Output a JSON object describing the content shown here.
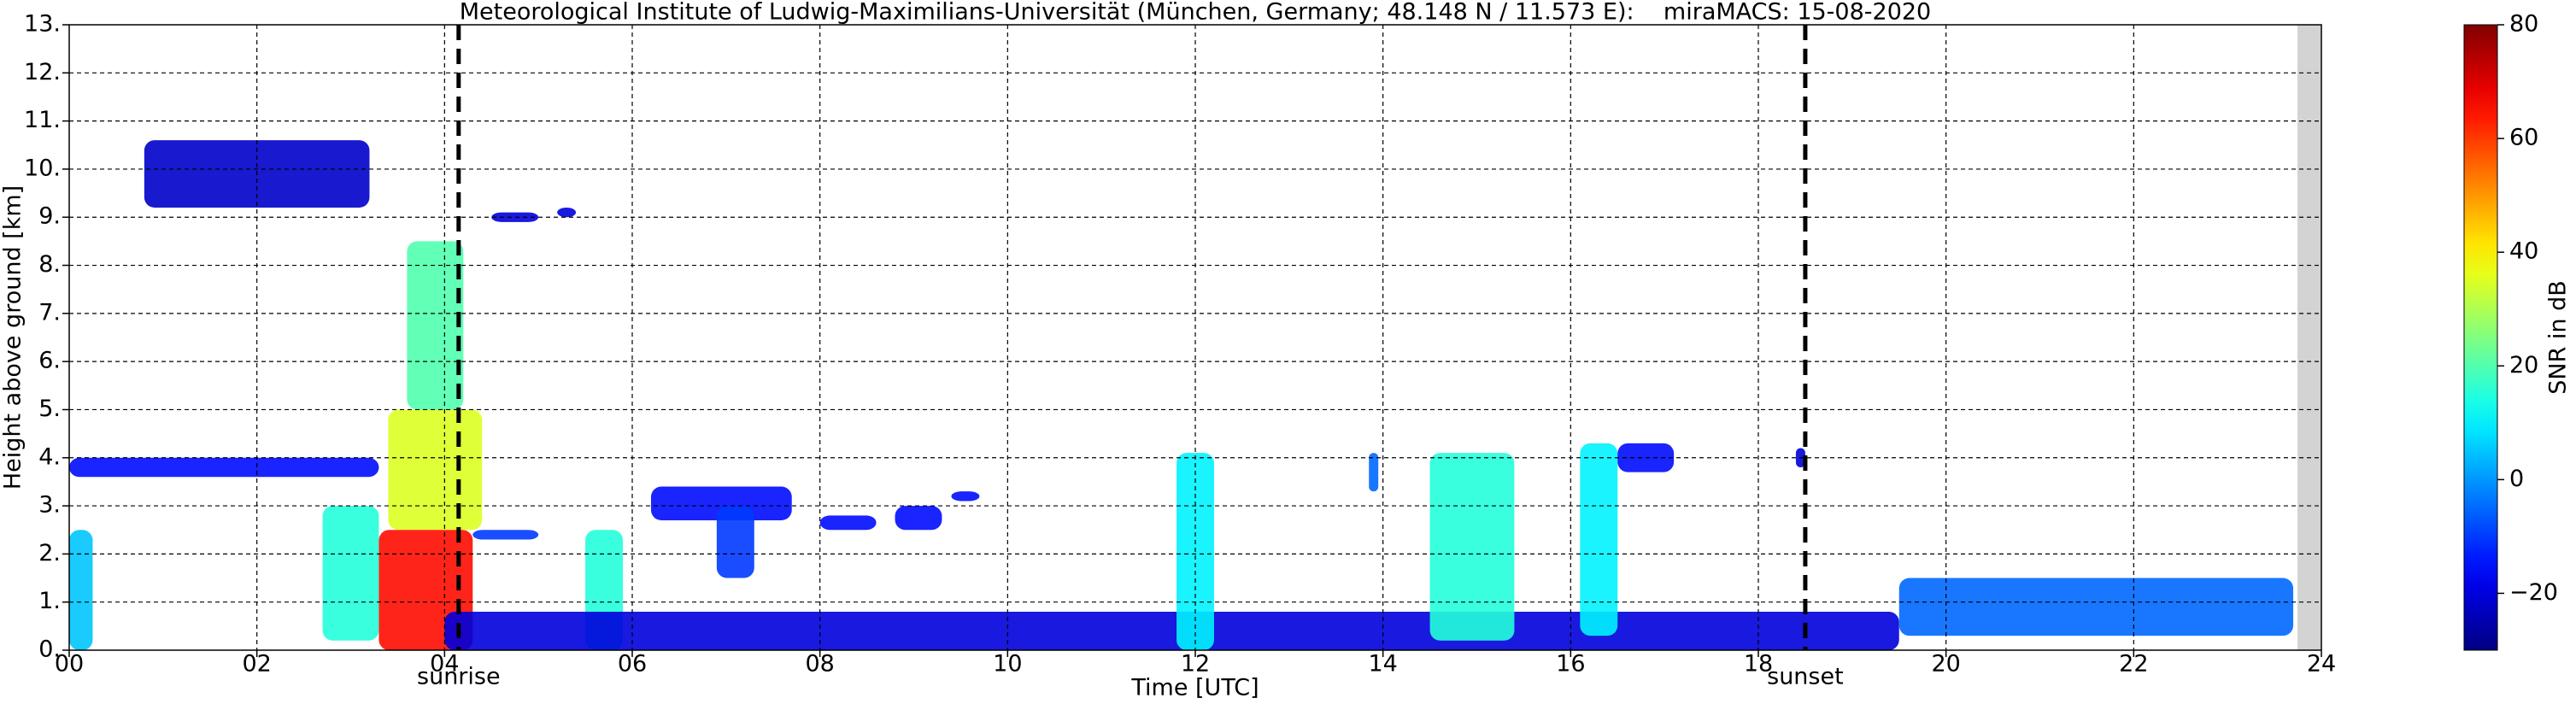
{
  "chart_data": {
    "type": "radar-heatmap",
    "title": "Meteorological Institute of Ludwig-Maximilians-Universität (München, Germany; 48.148 N / 11.573 E):    miraMACS: 15-08-2020",
    "x_label": "Time [UTC]",
    "y_label": "Height above ground [km]",
    "colorbar_label": "SNR in dB",
    "xlim": [
      0,
      24
    ],
    "xticks": [
      {
        "value": 0,
        "label": "00"
      },
      {
        "value": 2,
        "label": "02"
      },
      {
        "value": 4,
        "label": "04"
      },
      {
        "value": 6,
        "label": "06"
      },
      {
        "value": 8,
        "label": "08"
      },
      10,
      12,
      14,
      16,
      18,
      20,
      22,
      24
    ],
    "ylim": [
      0,
      13
    ],
    "yticks": [
      {
        "value": 0,
        "label": "0."
      },
      {
        "value": 1,
        "label": "1."
      },
      {
        "value": 2,
        "label": "2."
      },
      {
        "value": 3,
        "label": "3."
      },
      {
        "value": 4,
        "label": "4."
      },
      {
        "value": 5,
        "label": "5."
      },
      {
        "value": 6,
        "label": "6."
      },
      {
        "value": 7,
        "label": "7."
      },
      {
        "value": 8,
        "label": "8."
      },
      {
        "value": 9,
        "label": "9."
      },
      {
        "value": 10,
        "label": "10."
      },
      {
        "value": 11,
        "label": "11."
      },
      {
        "value": 12,
        "label": "12."
      },
      {
        "value": 13,
        "label": "13."
      }
    ],
    "clim": [
      -30,
      80
    ],
    "cticks": [
      {
        "value": -20,
        "label": "−20"
      },
      0,
      20,
      40,
      60,
      80
    ],
    "colormap": "jet",
    "grid": true,
    "annotations": [
      {
        "text": "sunrise",
        "x": 4.15
      },
      {
        "text": "sunset",
        "x": 18.5
      }
    ],
    "echoes": [
      {
        "t0": 0.8,
        "t1": 3.2,
        "h0": 9.2,
        "h1": 10.6,
        "snr": -22
      },
      {
        "t0": 0.0,
        "t1": 3.3,
        "h0": 3.6,
        "h1": 4.0,
        "snr": -15
      },
      {
        "t0": 0.0,
        "t1": 0.25,
        "h0": 0.0,
        "h1": 2.5,
        "snr": 5
      },
      {
        "t0": 2.7,
        "t1": 3.3,
        "h0": 0.2,
        "h1": 3.0,
        "snr": 15
      },
      {
        "t0": 3.6,
        "t1": 4.2,
        "h0": 5.0,
        "h1": 8.5,
        "snr": 20
      },
      {
        "t0": 3.4,
        "t1": 4.4,
        "h0": 2.5,
        "h1": 5.0,
        "snr": 35
      },
      {
        "t0": 3.3,
        "t1": 4.3,
        "h0": 0.0,
        "h1": 2.5,
        "snr": 65
      },
      {
        "t0": 4.3,
        "t1": 5.0,
        "h0": 2.3,
        "h1": 2.5,
        "snr": -10
      },
      {
        "t0": 4.5,
        "t1": 5.0,
        "h0": 8.9,
        "h1": 9.1,
        "snr": -20
      },
      {
        "t0": 5.2,
        "t1": 5.4,
        "h0": 9.0,
        "h1": 9.2,
        "snr": -20
      },
      {
        "t0": 5.5,
        "t1": 5.9,
        "h0": 0.0,
        "h1": 2.5,
        "snr": 15
      },
      {
        "t0": 6.2,
        "t1": 7.7,
        "h0": 2.7,
        "h1": 3.4,
        "snr": -15
      },
      {
        "t0": 6.9,
        "t1": 7.3,
        "h0": 1.5,
        "h1": 3.0,
        "snr": -10
      },
      {
        "t0": 8.0,
        "t1": 8.6,
        "h0": 2.5,
        "h1": 2.8,
        "snr": -15
      },
      {
        "t0": 8.8,
        "t1": 9.3,
        "h0": 2.5,
        "h1": 3.0,
        "snr": -15
      },
      {
        "t0": 9.4,
        "t1": 9.7,
        "h0": 3.1,
        "h1": 3.3,
        "snr": -15
      },
      {
        "t0": 4.0,
        "t1": 19.5,
        "h0": 0.0,
        "h1": 0.8,
        "snr": -20
      },
      {
        "t0": 11.8,
        "t1": 12.2,
        "h0": 0.0,
        "h1": 4.1,
        "snr": 10
      },
      {
        "t0": 13.85,
        "t1": 13.95,
        "h0": 3.3,
        "h1": 4.1,
        "snr": -5
      },
      {
        "t0": 14.5,
        "t1": 15.4,
        "h0": 0.2,
        "h1": 4.1,
        "snr": 15
      },
      {
        "t0": 16.1,
        "t1": 16.5,
        "h0": 0.3,
        "h1": 4.3,
        "snr": 10
      },
      {
        "t0": 16.5,
        "t1": 17.1,
        "h0": 3.7,
        "h1": 4.3,
        "snr": -15
      },
      {
        "t0": 18.4,
        "t1": 18.5,
        "h0": 3.8,
        "h1": 4.2,
        "snr": -20
      },
      {
        "t0": 19.5,
        "t1": 23.7,
        "h0": 0.3,
        "h1": 1.5,
        "snr": -5
      }
    ]
  }
}
